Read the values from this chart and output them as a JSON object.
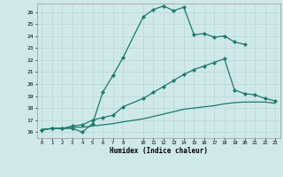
{
  "xlabel": "Humidex (Indice chaleur)",
  "bg_color": "#cfe8e8",
  "line_color": "#1a7a6a",
  "grid_color": "#b8d8d8",
  "xlim": [
    -0.5,
    23.5
  ],
  "ylim": [
    15.5,
    26.7
  ],
  "xticks": [
    0,
    1,
    2,
    3,
    4,
    5,
    6,
    7,
    8,
    10,
    11,
    12,
    13,
    14,
    15,
    16,
    17,
    18,
    19,
    20,
    21,
    22,
    23
  ],
  "yticks": [
    16,
    17,
    18,
    19,
    20,
    21,
    22,
    23,
    24,
    25,
    26
  ],
  "curve1_x": [
    0,
    1,
    2,
    3,
    4,
    5,
    6,
    7,
    8,
    10,
    11,
    12,
    13,
    14,
    15,
    16,
    17,
    18,
    19,
    20
  ],
  "curve1_y": [
    16.2,
    16.3,
    16.3,
    16.3,
    16.0,
    16.7,
    19.3,
    20.7,
    22.2,
    25.6,
    26.2,
    26.5,
    26.1,
    26.4,
    24.1,
    24.2,
    23.9,
    24.0,
    23.5,
    23.3
  ],
  "curve2_x": [
    0,
    1,
    2,
    3,
    4,
    5,
    6,
    7,
    8,
    10,
    11,
    12,
    13,
    14,
    15,
    16,
    17,
    18,
    19,
    20,
    21,
    22,
    23
  ],
  "curve2_y": [
    16.2,
    16.3,
    16.3,
    16.5,
    16.6,
    17.0,
    17.2,
    17.4,
    18.1,
    18.8,
    19.3,
    19.8,
    20.3,
    20.8,
    21.2,
    21.5,
    21.8,
    22.1,
    19.5,
    19.2,
    19.1,
    18.8,
    18.6
  ],
  "curve3_x": [
    0,
    1,
    2,
    3,
    4,
    5,
    6,
    7,
    8,
    10,
    11,
    12,
    13,
    14,
    15,
    16,
    17,
    18,
    19,
    20,
    21,
    22,
    23
  ],
  "curve3_y": [
    16.2,
    16.3,
    16.3,
    16.4,
    16.4,
    16.5,
    16.6,
    16.7,
    16.85,
    17.1,
    17.3,
    17.5,
    17.7,
    17.9,
    18.0,
    18.1,
    18.2,
    18.35,
    18.45,
    18.5,
    18.5,
    18.5,
    18.4
  ]
}
